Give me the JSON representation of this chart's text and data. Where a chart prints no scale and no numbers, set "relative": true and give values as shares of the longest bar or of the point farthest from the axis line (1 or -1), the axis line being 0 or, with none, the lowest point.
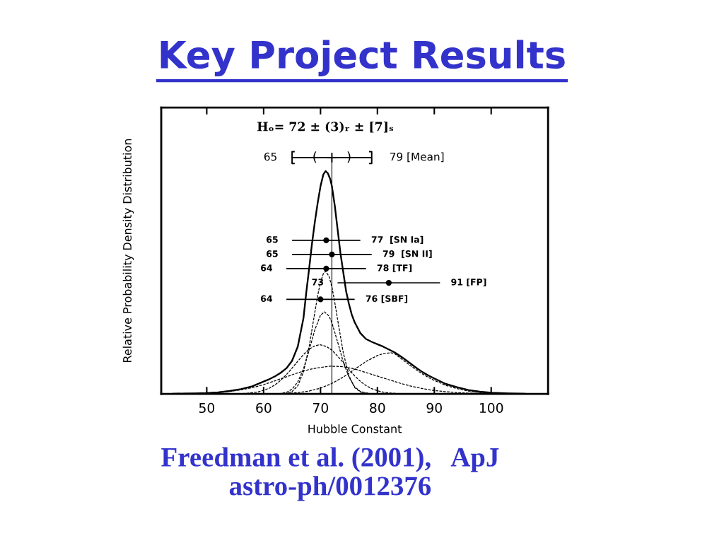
{
  "chart_data": {
    "type": "line",
    "title": "Key Project Results",
    "xlabel": "Hubble Constant",
    "ylabel": "Relative Probability Density Distribution",
    "relative": true,
    "xlim": [
      42,
      110
    ],
    "xticks": [
      50,
      60,
      70,
      80,
      90,
      100
    ],
    "ref_lines": [
      {
        "axis": "x",
        "value": 72
      }
    ],
    "series": [
      {
        "color": "#000000",
        "line_style": "solid",
        "x": [
          44,
          46,
          48,
          50,
          52,
          54,
          56,
          58,
          60,
          61,
          62,
          63,
          64,
          65,
          66,
          67,
          67.5,
          68,
          68.5,
          69,
          69.5,
          70,
          70.5,
          70.9,
          71.3,
          71.7,
          72,
          72.5,
          73,
          73.5,
          74,
          74.5,
          75,
          75.5,
          76,
          77,
          78,
          79,
          80,
          81,
          82,
          83,
          84,
          85,
          86,
          87,
          88,
          89,
          90,
          92,
          94,
          96,
          98,
          100,
          103,
          106
        ],
        "values": [
          0.0,
          0.001,
          0.002,
          0.003,
          0.006,
          0.012,
          0.02,
          0.032,
          0.052,
          0.062,
          0.074,
          0.089,
          0.108,
          0.14,
          0.2,
          0.32,
          0.43,
          0.53,
          0.636,
          0.727,
          0.808,
          0.879,
          0.929,
          0.943,
          0.933,
          0.909,
          0.879,
          0.798,
          0.697,
          0.596,
          0.515,
          0.434,
          0.38,
          0.335,
          0.303,
          0.257,
          0.232,
          0.22,
          0.21,
          0.2,
          0.188,
          0.176,
          0.16,
          0.143,
          0.125,
          0.107,
          0.091,
          0.077,
          0.065,
          0.042,
          0.028,
          0.016,
          0.009,
          0.005,
          0.002,
          0.0
        ]
      },
      {
        "color": "#000000",
        "line_style": "dashed",
        "x": [
          63,
          64,
          65,
          66,
          67,
          68,
          69,
          69.5,
          70,
          70.5,
          70.9,
          71.5,
          72,
          72.5,
          73,
          74,
          75,
          76,
          77,
          78,
          79
        ],
        "values": [
          0.0,
          0.002,
          0.01,
          0.034,
          0.093,
          0.2,
          0.345,
          0.416,
          0.473,
          0.509,
          0.519,
          0.497,
          0.453,
          0.388,
          0.315,
          0.174,
          0.077,
          0.026,
          0.008,
          0.002,
          0.0
        ]
      },
      {
        "color": "#000000",
        "line_style": "dashed",
        "x": [
          62,
          63,
          64,
          65,
          66,
          67,
          68,
          69,
          70,
          70.7,
          71.5,
          72,
          73,
          74,
          75,
          76,
          77,
          78,
          79
        ],
        "values": [
          0.0,
          0.002,
          0.006,
          0.02,
          0.05,
          0.105,
          0.184,
          0.271,
          0.333,
          0.347,
          0.329,
          0.301,
          0.22,
          0.135,
          0.071,
          0.03,
          0.01,
          0.004,
          0.0
        ]
      },
      {
        "color": "#000000",
        "line_style": "dashed",
        "x": [
          55,
          56,
          57,
          58,
          59,
          60,
          61,
          62,
          63,
          64,
          65,
          66,
          67,
          68,
          69,
          69.9,
          71,
          72,
          73,
          74,
          75,
          76,
          77,
          78,
          79,
          80,
          81,
          82,
          83,
          85
        ],
        "values": [
          0.0,
          0.001,
          0.002,
          0.005,
          0.008,
          0.015,
          0.024,
          0.038,
          0.057,
          0.081,
          0.109,
          0.138,
          0.166,
          0.189,
          0.203,
          0.208,
          0.201,
          0.185,
          0.16,
          0.132,
          0.103,
          0.076,
          0.053,
          0.035,
          0.022,
          0.013,
          0.007,
          0.004,
          0.002,
          0.0
        ]
      },
      {
        "color": "#000000",
        "line_style": "dashed",
        "x": [
          46,
          48,
          50,
          52,
          54,
          56,
          58,
          60,
          62,
          64,
          66,
          68,
          70,
          71.7,
          74,
          76,
          78,
          80,
          82,
          84,
          86,
          88,
          90,
          92,
          94,
          96,
          98,
          100,
          102
        ],
        "values": [
          0.0,
          0.001,
          0.003,
          0.006,
          0.01,
          0.017,
          0.026,
          0.039,
          0.055,
          0.072,
          0.089,
          0.103,
          0.112,
          0.117,
          0.115,
          0.105,
          0.09,
          0.075,
          0.06,
          0.045,
          0.032,
          0.022,
          0.014,
          0.009,
          0.005,
          0.003,
          0.002,
          0.001,
          0.0
        ]
      },
      {
        "color": "#000000",
        "line_style": "dashed",
        "x": [
          62,
          64,
          66,
          68,
          70,
          72,
          74,
          76,
          78,
          80,
          81,
          82.3,
          83,
          84,
          85,
          86,
          87,
          88,
          89,
          90,
          92,
          94,
          96,
          98,
          100,
          102,
          104
        ],
        "values": [
          0.0,
          0.002,
          0.005,
          0.012,
          0.024,
          0.044,
          0.071,
          0.104,
          0.137,
          0.162,
          0.17,
          0.174,
          0.171,
          0.152,
          0.134,
          0.116,
          0.099,
          0.083,
          0.069,
          0.057,
          0.036,
          0.022,
          0.012,
          0.006,
          0.002,
          0.001,
          0.0
        ]
      },
      {
        "type": "scatter",
        "color": "#000000",
        "marker": "circle",
        "x": [
          71,
          72,
          71,
          82,
          70
        ],
        "values": [
          0.65,
          0.59,
          0.53,
          0.47,
          0.4
        ],
        "xerrors": [
          [
            65,
            77
          ],
          [
            65,
            79
          ],
          [
            64,
            78
          ],
          [
            73,
            91
          ],
          [
            64,
            76
          ]
        ]
      },
      {
        "type": "scatter",
        "color": "#000000",
        "marker": "cross",
        "x": [
          72
        ],
        "values": [
          1.0
        ],
        "xerrors": [
          [
            65,
            79
          ]
        ]
      }
    ],
    "annotations": [
      "Hₒ= 72 ± (3)ᵣ ± [7]ₛ",
      {
        "text": "65",
        "x": 65,
        "y": 1.0
      },
      {
        "text": "(",
        "x": 69,
        "y": 1.0
      },
      {
        "text": ")",
        "x": 75,
        "y": 1.0
      },
      {
        "text": "79 [Mean]",
        "x": 79,
        "y": 1.0
      },
      {
        "text": "65",
        "x": 65,
        "y": 0.65
      },
      {
        "text": "77  [SN Ia]",
        "x": 77,
        "y": 0.65
      },
      {
        "text": "65",
        "x": 65,
        "y": 0.59
      },
      {
        "text": "79  [SN II]",
        "x": 79,
        "y": 0.59
      },
      {
        "text": "64",
        "x": 64,
        "y": 0.53
      },
      {
        "text": "78 [TF]",
        "x": 78,
        "y": 0.53
      },
      {
        "text": "73",
        "x": 73,
        "y": 0.47
      },
      {
        "text": "91 [FP]",
        "x": 91,
        "y": 0.47
      },
      {
        "text": "64",
        "x": 64,
        "y": 0.4
      },
      {
        "text": "76 [SBF]",
        "x": 76,
        "y": 0.4
      },
      "Freedman et al. (2001),   ApJ\nastro-ph/0012376"
    ]
  }
}
